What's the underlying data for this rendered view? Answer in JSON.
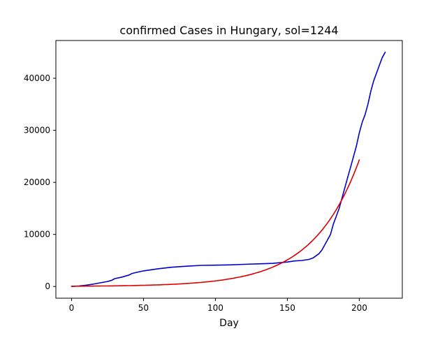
{
  "chart_data": {
    "type": "line",
    "title": "confirmed Cases in Hungary, sol=1244",
    "xlabel": "Day",
    "ylabel": "",
    "xlim": [
      -10.9,
      229.9
    ],
    "ylim": [
      -2250,
      47250
    ],
    "xticks": [
      0,
      50,
      100,
      150,
      200
    ],
    "yticks": [
      0,
      10000,
      20000,
      30000,
      40000
    ],
    "grid": false,
    "series": [
      {
        "color": "#0000cc",
        "x": [
          0,
          5,
          10,
          15,
          20,
          25,
          28,
          30,
          35,
          40,
          42,
          45,
          50,
          55,
          60,
          70,
          80,
          90,
          100,
          110,
          120,
          130,
          140,
          150,
          155,
          160,
          165,
          168,
          170,
          172,
          174,
          176,
          178,
          180,
          182,
          184,
          186,
          188,
          190,
          192,
          194,
          196,
          198,
          200,
          202,
          204,
          206,
          208,
          210,
          212,
          214,
          216,
          218
        ],
        "y": [
          0,
          100,
          250,
          450,
          700,
          950,
          1200,
          1500,
          1800,
          2200,
          2500,
          2700,
          3000,
          3200,
          3400,
          3700,
          3900,
          4050,
          4100,
          4150,
          4250,
          4350,
          4450,
          4700,
          4900,
          5000,
          5200,
          5500,
          5900,
          6300,
          7000,
          8000,
          9000,
          10000,
          12000,
          13500,
          15000,
          17000,
          19000,
          21000,
          23000,
          25000,
          27000,
          29500,
          31500,
          33000,
          35000,
          37500,
          39500,
          41000,
          42500,
          44000,
          45000
        ]
      },
      {
        "color": "#dd0000",
        "model": {
          "a": 47.5,
          "b": 0.03119
        },
        "x_start": 0,
        "x_end": 200
      }
    ]
  }
}
